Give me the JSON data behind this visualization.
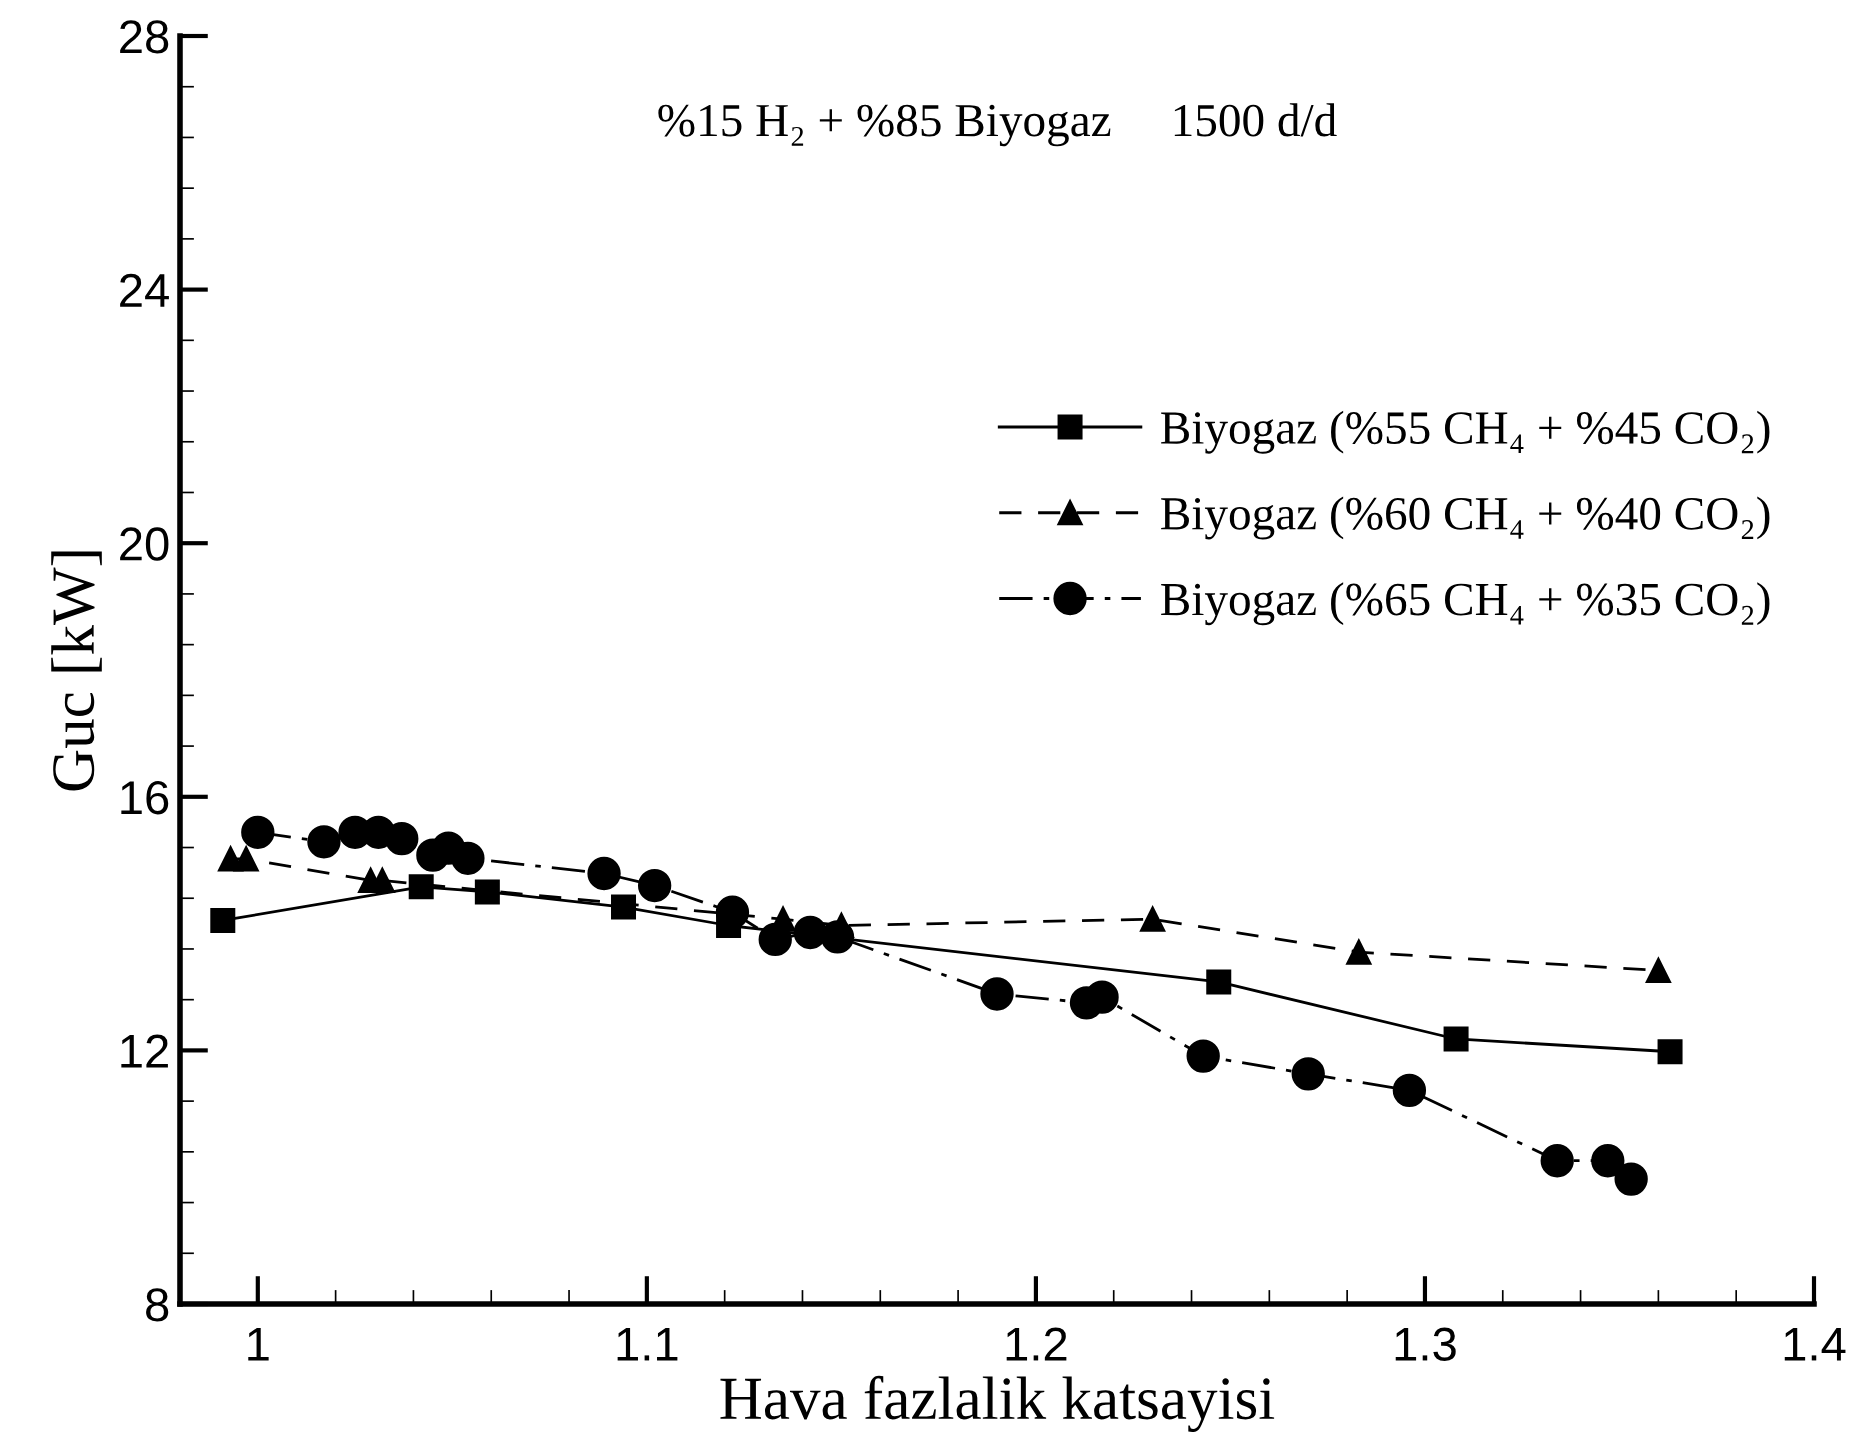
{
  "chart_data": {
    "type": "line",
    "xlabel": "Hava fazlalik katsayisi",
    "ylabel": "Guc [kW]",
    "annotations": [
      "%15 H₂ + %85 Biyogaz     1500 d/d"
    ],
    "xlim": [
      0.98,
      1.4
    ],
    "xticks": [
      1,
      1.1,
      1.2,
      1.3,
      1.4
    ],
    "ylim": [
      8,
      28
    ],
    "yticks": [
      8,
      12,
      16,
      20,
      24,
      28
    ],
    "grid": false,
    "legend": "right",
    "series": [
      {
        "name": "Biyogaz (%55 CH₄ + %45 CO₂)",
        "color": "#000000",
        "marker": "square",
        "line_style": "solid",
        "x": [
          0.991,
          1.042,
          1.059,
          1.094,
          1.121,
          1.247,
          1.308,
          1.363
        ],
        "values": [
          14.05,
          14.58,
          14.5,
          14.26,
          13.97,
          13.08,
          12.18,
          11.98
        ]
      },
      {
        "name": "Biyogaz (%60 CH₄ + %40 CO₂)",
        "color": "#000000",
        "marker": "triangle",
        "line_style": "dashed",
        "x": [
          0.993,
          0.997,
          1.029,
          1.032,
          1.135,
          1.15,
          1.23,
          1.283,
          1.36
        ],
        "values": [
          15.02,
          15.02,
          14.68,
          14.68,
          14.07,
          13.97,
          14.07,
          13.55,
          13.26
        ]
      },
      {
        "name": "Biyogaz (%65 CH₄ + %35 CO₂)",
        "color": "#000000",
        "marker": "circle",
        "line_style": "dashdot",
        "x": [
          1.0,
          1.017,
          1.025,
          1.031,
          1.037,
          1.045,
          1.049,
          1.054,
          1.089,
          1.102,
          1.122,
          1.133,
          1.142,
          1.149,
          1.19,
          1.213,
          1.217,
          1.243,
          1.27,
          1.296,
          1.334,
          1.347,
          1.353
        ],
        "values": [
          15.44,
          15.29,
          15.44,
          15.44,
          15.34,
          15.08,
          15.19,
          15.03,
          14.79,
          14.6,
          14.18,
          13.75,
          13.86,
          13.79,
          12.89,
          12.75,
          12.84,
          11.91,
          11.63,
          11.37,
          10.26,
          10.26,
          9.97
        ]
      }
    ]
  }
}
